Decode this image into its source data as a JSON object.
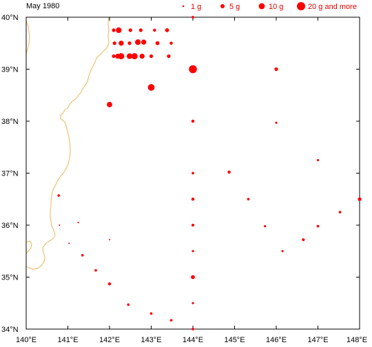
{
  "title": "May 1980",
  "colors": {
    "marker": "#ff0000",
    "coast": "#f0c070",
    "frame": "#000000",
    "legend_text": "#e00000"
  },
  "legend": [
    {
      "label": "1 g",
      "grams": 1
    },
    {
      "label": "5 g",
      "grams": 5
    },
    {
      "label": "10 g",
      "grams": 10
    },
    {
      "label": "20 g and more",
      "grams": 20
    }
  ],
  "axes": {
    "lon_range": [
      140,
      148
    ],
    "lat_range": [
      34,
      40
    ],
    "x_ticks": [
      {
        "value": 140,
        "label": "140°E"
      },
      {
        "value": 141,
        "label": "141°E"
      },
      {
        "value": 142,
        "label": "142°E"
      },
      {
        "value": 143,
        "label": "143°E"
      },
      {
        "value": 144,
        "label": "144°E"
      },
      {
        "value": 145,
        "label": "145°E"
      },
      {
        "value": 146,
        "label": "146°E"
      },
      {
        "value": 147,
        "label": "147°E"
      },
      {
        "value": 148,
        "label": "148°E"
      }
    ],
    "y_ticks": [
      {
        "value": 34,
        "label": "34°N"
      },
      {
        "value": 35,
        "label": "35°N"
      },
      {
        "value": 36,
        "label": "36°N"
      },
      {
        "value": 37,
        "label": "37°N"
      },
      {
        "value": 38,
        "label": "38°N"
      },
      {
        "value": 39,
        "label": "39°N"
      },
      {
        "value": 40,
        "label": "40°N"
      }
    ]
  },
  "chart_data": {
    "type": "scatter",
    "title": "May 1980",
    "xlim": [
      140,
      148
    ],
    "ylim": [
      34,
      40
    ],
    "grid": false,
    "legend_position": "top",
    "points": [
      {
        "lon": 144.0,
        "lat": 40.0,
        "g": 2
      },
      {
        "lon": 142.1,
        "lat": 39.75,
        "g": 4
      },
      {
        "lon": 142.22,
        "lat": 39.75,
        "g": 10
      },
      {
        "lon": 142.5,
        "lat": 39.75,
        "g": 4
      },
      {
        "lon": 142.75,
        "lat": 39.75,
        "g": 4
      },
      {
        "lon": 143.08,
        "lat": 39.75,
        "g": 3
      },
      {
        "lon": 143.38,
        "lat": 39.75,
        "g": 5
      },
      {
        "lon": 142.12,
        "lat": 39.5,
        "g": 4
      },
      {
        "lon": 142.28,
        "lat": 39.5,
        "g": 8
      },
      {
        "lon": 142.48,
        "lat": 39.5,
        "g": 4
      },
      {
        "lon": 142.68,
        "lat": 39.52,
        "g": 10
      },
      {
        "lon": 142.82,
        "lat": 39.52,
        "g": 8
      },
      {
        "lon": 143.15,
        "lat": 39.5,
        "g": 5
      },
      {
        "lon": 143.48,
        "lat": 39.5,
        "g": 3
      },
      {
        "lon": 142.1,
        "lat": 39.25,
        "g": 4
      },
      {
        "lon": 142.2,
        "lat": 39.25,
        "g": 8
      },
      {
        "lon": 142.28,
        "lat": 39.25,
        "g": 12
      },
      {
        "lon": 142.48,
        "lat": 39.25,
        "g": 10
      },
      {
        "lon": 142.6,
        "lat": 39.25,
        "g": 12
      },
      {
        "lon": 142.78,
        "lat": 39.25,
        "g": 8
      },
      {
        "lon": 143.0,
        "lat": 39.25,
        "g": 4
      },
      {
        "lon": 143.42,
        "lat": 39.25,
        "g": 4
      },
      {
        "lon": 144.0,
        "lat": 39.0,
        "g": 20
      },
      {
        "lon": 146.0,
        "lat": 39.0,
        "g": 4
      },
      {
        "lon": 143.0,
        "lat": 38.65,
        "g": 14
      },
      {
        "lon": 142.0,
        "lat": 38.32,
        "g": 9
      },
      {
        "lon": 144.0,
        "lat": 38.0,
        "g": 3
      },
      {
        "lon": 146.0,
        "lat": 37.97,
        "g": 1.5
      },
      {
        "lon": 147.0,
        "lat": 37.25,
        "g": 1.5
      },
      {
        "lon": 144.87,
        "lat": 37.02,
        "g": 3
      },
      {
        "lon": 144.0,
        "lat": 37.0,
        "g": 2
      },
      {
        "lon": 140.78,
        "lat": 36.57,
        "g": 2
      },
      {
        "lon": 144.0,
        "lat": 36.5,
        "g": 3
      },
      {
        "lon": 145.33,
        "lat": 36.5,
        "g": 2
      },
      {
        "lon": 148.0,
        "lat": 36.5,
        "g": 4
      },
      {
        "lon": 147.53,
        "lat": 36.25,
        "g": 2
      },
      {
        "lon": 141.25,
        "lat": 36.05,
        "g": 0.8
      },
      {
        "lon": 140.8,
        "lat": 36.0,
        "g": 0.6
      },
      {
        "lon": 144.0,
        "lat": 36.0,
        "g": 2.5
      },
      {
        "lon": 145.73,
        "lat": 35.98,
        "g": 1.5
      },
      {
        "lon": 147.0,
        "lat": 35.98,
        "g": 2
      },
      {
        "lon": 141.03,
        "lat": 35.65,
        "g": 0.6
      },
      {
        "lon": 142.0,
        "lat": 35.72,
        "g": 0.6
      },
      {
        "lon": 146.65,
        "lat": 35.72,
        "g": 2.5
      },
      {
        "lon": 144.0,
        "lat": 35.5,
        "g": 1.5
      },
      {
        "lon": 146.15,
        "lat": 35.5,
        "g": 1.5
      },
      {
        "lon": 141.35,
        "lat": 35.42,
        "g": 2
      },
      {
        "lon": 141.67,
        "lat": 35.13,
        "g": 2
      },
      {
        "lon": 144.0,
        "lat": 35.0,
        "g": 5
      },
      {
        "lon": 142.0,
        "lat": 34.87,
        "g": 3
      },
      {
        "lon": 144.0,
        "lat": 34.5,
        "g": 1.5
      },
      {
        "lon": 142.45,
        "lat": 34.47,
        "g": 2
      },
      {
        "lon": 143.0,
        "lat": 34.3,
        "g": 2
      },
      {
        "lon": 143.48,
        "lat": 34.17,
        "g": 2
      },
      {
        "lon": 144.0,
        "lat": 34.0,
        "g": 2
      }
    ]
  }
}
